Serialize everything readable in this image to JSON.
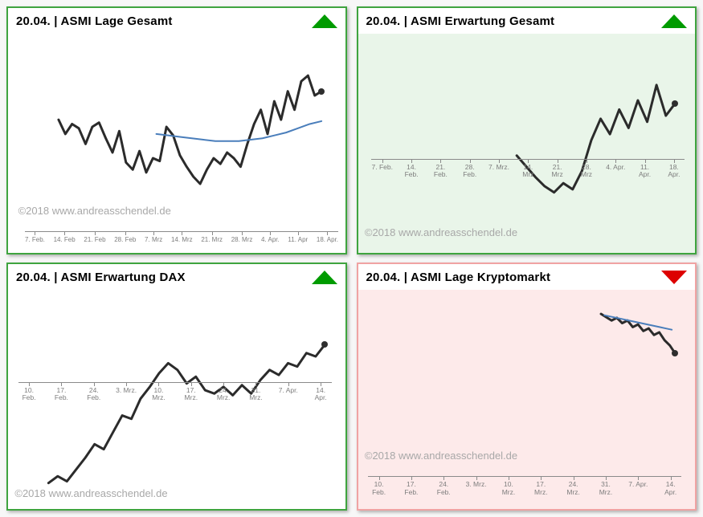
{
  "page": {
    "background": "#f7f7f7"
  },
  "chart_data": [
    {
      "type": "line",
      "title": "20.04. | ASMI Lage Gesamt",
      "watermark": "©2018 www.andreasschendel.de",
      "indicator": {
        "direction": "up",
        "color": "#009b00"
      },
      "panel_bg": "#ffffff",
      "border_color": "#3fa43f",
      "ticks": [
        "7. Feb.",
        "14. Feb",
        "21. Feb",
        "28. Feb",
        "7. Mrz",
        "14. Mrz",
        "21. Mrz",
        "28. Mrz",
        "4. Apr.",
        "11. Apr",
        "18. Apr."
      ],
      "tick_mode": "nowrap",
      "axis_y_pct": 90,
      "axis_left_pct": 5,
      "axis_right_pct": 2,
      "watermark_top_pct": 78,
      "watermark_left_pct": 3,
      "plot": {
        "top_pct": 10,
        "height_pct": 65
      },
      "series": [
        {
          "name": "asmi",
          "color": "#2b2b2b",
          "width": 3,
          "x_start_pct": 15,
          "x_end_pct": 93,
          "end_dot": true,
          "values": [
            55,
            45,
            52,
            49,
            38,
            50,
            53,
            42,
            32,
            47,
            25,
            20,
            33,
            18,
            28,
            26,
            50,
            44,
            30,
            22,
            15,
            10,
            20,
            28,
            24,
            32,
            28,
            22,
            38,
            52,
            62,
            45,
            68,
            55,
            75,
            62,
            82,
            86,
            72,
            75
          ]
        },
        {
          "name": "trend",
          "color": "#4a7ebb",
          "width": 2,
          "x_start_pct": 44,
          "x_end_pct": 93,
          "end_dot": false,
          "values": [
            45,
            44,
            43,
            42,
            41,
            40,
            40,
            40,
            41,
            42,
            44,
            46,
            49,
            52,
            54
          ]
        }
      ]
    },
    {
      "type": "line",
      "title": "20.04. | ASMI Erwartung Gesamt",
      "watermark": "©2018 www.andreasschendel.de",
      "indicator": {
        "direction": "up",
        "color": "#009b00"
      },
      "panel_bg": "#e9f5e9",
      "border_color": "#3fa43f",
      "ticks": [
        "7. Feb.",
        "14. Feb.",
        "21. Feb.",
        "28. Feb.",
        "7. Mrz.",
        "14. Mrz",
        "21. Mrz",
        "28. Mrz",
        "4. Apr.",
        "11. Apr.",
        "18. Apr."
      ],
      "tick_mode": "wrap",
      "axis_y_pct": 57,
      "axis_left_pct": 4,
      "axis_right_pct": 3,
      "watermark_top_pct": 88,
      "watermark_left_pct": 2,
      "plot": {
        "top_pct": 15,
        "height_pct": 70
      },
      "series": [
        {
          "name": "asmi",
          "color": "#2b2b2b",
          "width": 3,
          "x_start_pct": 47,
          "x_end_pct": 94,
          "end_dot": true,
          "values": [
            42,
            35,
            28,
            22,
            18,
            24,
            20,
            32,
            52,
            66,
            56,
            72,
            60,
            78,
            64,
            88,
            68,
            76
          ]
        }
      ]
    },
    {
      "type": "line",
      "title": "20.04. | ASMI Erwartung DAX",
      "watermark": "©2018 www.andreasschendel.de",
      "indicator": {
        "direction": "up",
        "color": "#009b00"
      },
      "panel_bg": "#ffffff",
      "border_color": "#3fa43f",
      "ticks": [
        "10. Feb.",
        "17. Feb.",
        "24. Feb.",
        "3. Mrz.",
        "10. Mrz.",
        "17. Mrz.",
        "24. Mrz.",
        "31. Mrz.",
        "7. Apr.",
        "14. Apr."
      ],
      "tick_mode": "wrap",
      "axis_y_pct": 42,
      "axis_left_pct": 3,
      "axis_right_pct": 4,
      "watermark_top_pct": 90,
      "watermark_left_pct": 2,
      "plot": {
        "top_pct": 15,
        "height_pct": 77
      },
      "series": [
        {
          "name": "asmi",
          "color": "#2b2b2b",
          "width": 3,
          "x_start_pct": 12,
          "x_end_pct": 94,
          "end_dot": true,
          "values": [
            5,
            9,
            6,
            13,
            20,
            28,
            25,
            35,
            45,
            43,
            55,
            62,
            70,
            76,
            72,
            64,
            68,
            60,
            58,
            62,
            57,
            63,
            58,
            66,
            72,
            69,
            76,
            74,
            82,
            80,
            87
          ]
        }
      ]
    },
    {
      "type": "line",
      "title": "20.04. | ASMI Lage Kryptomarkt",
      "watermark": "©2018 www.andreasschendel.de",
      "indicator": {
        "direction": "down",
        "color": "#dd0000"
      },
      "panel_bg": "#fdeaea",
      "border_color": "#f0a3a3",
      "ticks": [
        "10. Feb.",
        "17. Feb.",
        "24. Feb.",
        "3. Mrz.",
        "10. Mrz.",
        "17. Mrz.",
        "24. Mrz.",
        "31. Mrz.",
        "7. Apr.",
        "14. Apr."
      ],
      "tick_mode": "wrap",
      "axis_y_pct": 85,
      "axis_left_pct": 3,
      "axis_right_pct": 4,
      "watermark_top_pct": 73,
      "watermark_left_pct": 2,
      "plot": {
        "top_pct": 8,
        "height_pct": 30
      },
      "series": [
        {
          "name": "asmi",
          "color": "#2b2b2b",
          "width": 3,
          "x_start_pct": 72,
          "x_end_pct": 94,
          "end_dot": true,
          "values": [
            90,
            85,
            80,
            84,
            76,
            80,
            70,
            74,
            64,
            68,
            58,
            62,
            50,
            42,
            30
          ]
        },
        {
          "name": "trend",
          "color": "#4a7ebb",
          "width": 2,
          "x_start_pct": 73,
          "x_end_pct": 93,
          "end_dot": false,
          "values": [
            88,
            86,
            84,
            82,
            80,
            78,
            76,
            74,
            72,
            70,
            68,
            66
          ]
        }
      ]
    }
  ]
}
